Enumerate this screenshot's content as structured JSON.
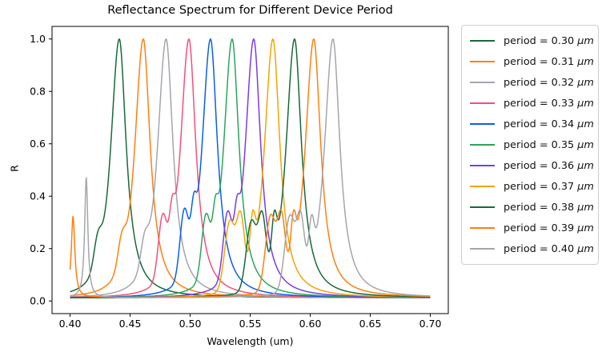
{
  "figure": {
    "background": "#ffffff"
  },
  "chart_data": {
    "type": "line",
    "title": "Reflectance Spectrum for Different Device Period",
    "xlabel": "Wavelength (um)",
    "ylabel": "R",
    "xlim": [
      0.385,
      0.715
    ],
    "ylim": [
      -0.048,
      1.048
    ],
    "x_ticks": [
      0.4,
      0.45,
      0.5,
      0.55,
      0.6,
      0.65,
      0.7
    ],
    "x_tick_labels": [
      "0.40",
      "0.45",
      "0.50",
      "0.55",
      "0.60",
      "0.65",
      "0.70"
    ],
    "y_ticks": [
      0.0,
      0.2,
      0.4,
      0.6,
      0.8,
      1.0
    ],
    "y_tick_labels": [
      "0.0",
      "0.2",
      "0.4",
      "0.6",
      "0.8",
      "1.0"
    ],
    "grid": false,
    "peak_reflectance": 1.0,
    "legend": {
      "prefix": "period = ",
      "unit": "μm",
      "location": "outside upper right",
      "border_color": "#cfcfcf"
    },
    "series": [
      {
        "period": "0.30",
        "label": "period = 0.30 μm",
        "color": "#17693B",
        "peak_wavelength_um": 0.441,
        "peak_R": 1.0,
        "gamma_left": 0.01,
        "gamma_right": 0.007,
        "k_left": 1.3,
        "k_right": 1.0,
        "base_R": 0.012,
        "shoulders": [
          {
            "c": 0.423,
            "h": 0.1,
            "w": 0.0045
          }
        ],
        "spikes": []
      },
      {
        "period": "0.31",
        "label": "period = 0.31 μm",
        "color": "#FF7F0E",
        "peak_wavelength_um": 0.461,
        "peak_R": 1.0,
        "gamma_left": 0.01,
        "gamma_right": 0.007,
        "k_left": 1.3,
        "k_right": 1.0,
        "base_R": 0.012,
        "shoulders": [
          {
            "c": 0.443,
            "h": 0.1,
            "w": 0.0045
          }
        ],
        "spikes": []
      },
      {
        "period": "0.32",
        "label": "period = 0.32 μm",
        "color": "#A5A5AD",
        "peak_wavelength_um": 0.48,
        "peak_R": 1.0,
        "gamma_left": 0.01,
        "gamma_right": 0.007,
        "k_left": 1.3,
        "k_right": 1.0,
        "base_R": 0.012,
        "shoulders": [
          {
            "c": 0.462,
            "h": 0.1,
            "w": 0.0045
          }
        ],
        "spikes": []
      },
      {
        "period": "0.33",
        "label": "period = 0.33 μm",
        "color": "#F2517B",
        "peak_wavelength_um": 0.499,
        "peak_R": 1.0,
        "gamma_left": 0.01,
        "gamma_right": 0.007,
        "k_left": 1.3,
        "k_right": 1.0,
        "base_R": 0.012,
        "shoulders": [
          {
            "c": 0.477,
            "h": 0.22,
            "w": 0.005
          },
          {
            "c": 0.485,
            "h": 0.13,
            "w": 0.003
          }
        ],
        "spikes": []
      },
      {
        "period": "0.34",
        "label": "period = 0.34 μm",
        "color": "#0A5FE8",
        "peak_wavelength_um": 0.517,
        "peak_R": 1.0,
        "gamma_left": 0.01,
        "gamma_right": 0.007,
        "k_left": 1.3,
        "k_right": 1.0,
        "base_R": 0.012,
        "shoulders": [
          {
            "c": 0.495,
            "h": 0.24,
            "w": 0.005
          },
          {
            "c": 0.503,
            "h": 0.14,
            "w": 0.003
          }
        ],
        "spikes": []
      },
      {
        "period": "0.35",
        "label": "period = 0.35 μm",
        "color": "#2BA55D",
        "peak_wavelength_um": 0.535,
        "peak_R": 1.0,
        "gamma_left": 0.01,
        "gamma_right": 0.007,
        "k_left": 1.3,
        "k_right": 1.0,
        "base_R": 0.012,
        "shoulders": [
          {
            "c": 0.513,
            "h": 0.22,
            "w": 0.005
          },
          {
            "c": 0.521,
            "h": 0.13,
            "w": 0.003
          }
        ],
        "spikes": []
      },
      {
        "period": "0.36",
        "label": "period = 0.36 μm",
        "color": "#7C3BE8",
        "peak_wavelength_um": 0.553,
        "peak_R": 1.0,
        "gamma_left": 0.01,
        "gamma_right": 0.007,
        "k_left": 1.3,
        "k_right": 1.0,
        "base_R": 0.012,
        "shoulders": [
          {
            "c": 0.531,
            "h": 0.23,
            "w": 0.005
          },
          {
            "c": 0.539,
            "h": 0.13,
            "w": 0.003
          }
        ],
        "spikes": []
      },
      {
        "period": "0.37",
        "label": "period = 0.37 μm",
        "color": "#F4A302",
        "peak_wavelength_um": 0.569,
        "peak_R": 1.0,
        "gamma_left": 0.01,
        "gamma_right": 0.007,
        "k_left": 1.3,
        "k_right": 1.0,
        "base_R": 0.012,
        "shoulders": [
          {
            "c": 0.533,
            "h": 0.26,
            "w": 0.006
          },
          {
            "c": 0.542,
            "h": 0.24,
            "w": 0.0045
          },
          {
            "c": 0.552,
            "h": 0.16,
            "w": 0.003
          }
        ],
        "spikes": []
      },
      {
        "period": "0.38",
        "label": "period = 0.38 μm",
        "color": "#17693B",
        "peak_wavelength_um": 0.587,
        "peak_R": 1.0,
        "gamma_left": 0.01,
        "gamma_right": 0.007,
        "k_left": 1.3,
        "k_right": 1.0,
        "base_R": 0.012,
        "shoulders": [
          {
            "c": 0.551,
            "h": 0.26,
            "w": 0.006
          },
          {
            "c": 0.56,
            "h": 0.24,
            "w": 0.0045
          },
          {
            "c": 0.57,
            "h": 0.16,
            "w": 0.003
          }
        ],
        "spikes": []
      },
      {
        "period": "0.39",
        "label": "period = 0.39 μm",
        "color": "#FF7F0E",
        "peak_wavelength_um": 0.603,
        "peak_R": 1.0,
        "gamma_left": 0.01,
        "gamma_right": 0.007,
        "k_left": 1.3,
        "k_right": 1.0,
        "base_R": 0.013,
        "shoulders": [
          {
            "c": 0.567,
            "h": 0.28,
            "w": 0.006
          },
          {
            "c": 0.576,
            "h": 0.24,
            "w": 0.0045
          },
          {
            "c": 0.586,
            "h": 0.16,
            "w": 0.003
          }
        ],
        "spikes": [
          {
            "c": 0.4025,
            "h": 0.31,
            "w": 0.0018
          }
        ]
      },
      {
        "period": "0.40",
        "label": "period = 0.40 μm",
        "color": "#A5A5AD",
        "peak_wavelength_um": 0.619,
        "peak_R": 1.0,
        "gamma_left": 0.01,
        "gamma_right": 0.007,
        "k_left": 1.3,
        "k_right": 1.0,
        "base_R": 0.012,
        "shoulders": [
          {
            "c": 0.583,
            "h": 0.28,
            "w": 0.006
          },
          {
            "c": 0.592,
            "h": 0.24,
            "w": 0.0045
          },
          {
            "c": 0.601,
            "h": 0.16,
            "w": 0.003
          }
        ],
        "spikes": [
          {
            "c": 0.4135,
            "h": 0.46,
            "w": 0.0016
          }
        ]
      }
    ]
  }
}
